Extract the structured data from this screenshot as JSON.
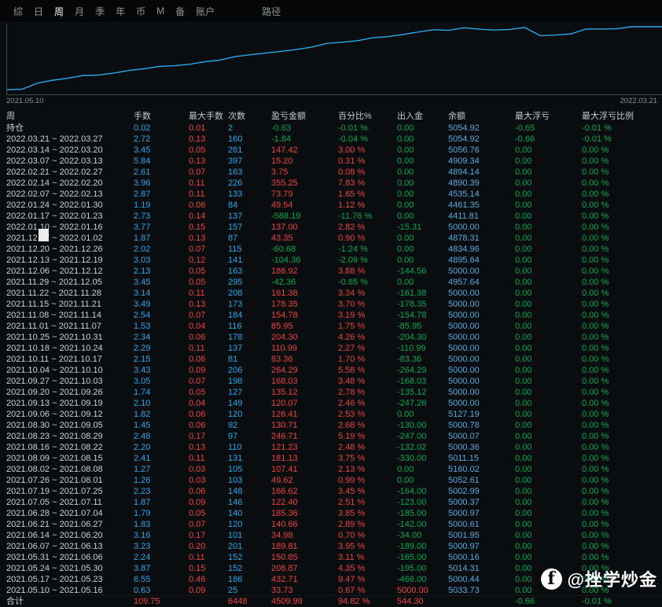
{
  "menu": {
    "items": [
      "综",
      "日",
      "周",
      "月",
      "季",
      "年",
      "币",
      "M",
      "备",
      "账户"
    ],
    "active_index": 2,
    "path_item": "路径"
  },
  "chart": {
    "x_start_label": "2021.05.10",
    "x_end_label": "2022.03.21"
  },
  "chart_data": {
    "type": "line",
    "title": "",
    "x_range": [
      "2021.05.10",
      "2022.03.21"
    ],
    "ylim": [
      0,
      4600
    ],
    "grid": false,
    "line_color": "#2aa7e8",
    "series": [
      {
        "name": "equity",
        "values": [
          0,
          33.73,
          466.44,
          675.31,
          826.16,
          1015.97,
          1050.95,
          1191.61,
          1376.97,
          1499.37,
          1665.99,
          1715.61,
          1823.02,
          2004.15,
          2125.38,
          2372.09,
          2502.8,
          2629.21,
          2749.28,
          2884.4,
          3052.43,
          3316.72,
          3400.08,
          3511.07,
          3715.37,
          3801.32,
          3956.1,
          4134.45,
          4295.83,
          4253.47,
          4440.39,
          4336.03,
          4275.35,
          4318.7,
          4455.7,
          3867.51,
          3917.05,
          3990.84,
          4346.09,
          4349.84,
          4365.04,
          4512.46,
          4510.62,
          4509.99
        ]
      }
    ]
  },
  "table": {
    "columns": [
      "周",
      "手数",
      "最大手数",
      "次数",
      "盈亏金额",
      "百分比%",
      "出入金",
      "余额",
      "最大浮亏",
      "最大浮亏比例"
    ],
    "rows": [
      [
        "持仓",
        "0.02",
        "0.01",
        "2",
        "-0.63",
        "-0.01 %",
        "0.00",
        "5054.92",
        "-0.65",
        "-0.01 %"
      ],
      [
        "2022.03.21 ~ 2022.03.27",
        "2.72",
        "0.13",
        "160",
        "-1.84",
        "-0.04 %",
        "0.00",
        "5054.92",
        "-0.66",
        "-0.01 %"
      ],
      [
        "2022.03.14 ~ 2022.03.20",
        "3.45",
        "0.05",
        "261",
        "147.42",
        "3.00 %",
        "0.00",
        "5056.76",
        "0.00",
        "0.00 %"
      ],
      [
        "2022.03.07 ~ 2022.03.13",
        "5.84",
        "0.13",
        "397",
        "15.20",
        "0.31 %",
        "0.00",
        "4909.34",
        "0.00",
        "0.00 %"
      ],
      [
        "2022.02.21 ~ 2022.02.27",
        "2.61",
        "0.07",
        "163",
        "3.75",
        "0.08 %",
        "0.00",
        "4894.14",
        "0.00",
        "0.00 %"
      ],
      [
        "2022.02.14 ~ 2022.02.20",
        "3.96",
        "0.11",
        "226",
        "355.25",
        "7.83 %",
        "0.00",
        "4890.39",
        "0.00",
        "0.00 %"
      ],
      [
        "2022.02.07 ~ 2022.02.13",
        "2.87",
        "0.11",
        "133",
        "73.79",
        "1.65 %",
        "0.00",
        "4535.14",
        "0.00",
        "0.00 %"
      ],
      [
        "2022.01.24 ~ 2022.01.30",
        "1.19",
        "0.06",
        "84",
        "49.54",
        "1.12 %",
        "0.00",
        "4461.35",
        "0.00",
        "0.00 %"
      ],
      [
        "2022.01.17 ~ 2022.01.23",
        "2.73",
        "0.14",
        "137",
        "-588.19",
        "-11.76 %",
        "0.00",
        "4411.81",
        "0.00",
        "0.00 %"
      ],
      [
        "2022.01.10 ~ 2022.01.16",
        "3.77",
        "0.15",
        "157",
        "137.00",
        "2.82 %",
        "-15.31",
        "5000.00",
        "0.00",
        "0.00 %"
      ],
      [
        "2021.12.27 ~ 2022.01.02",
        "1.87",
        "0.13",
        "87",
        "43.35",
        "0.90 %",
        "0.00",
        "4878.31",
        "0.00",
        "0.00 %"
      ],
      [
        "2021.12.20 ~ 2021.12.26",
        "2.02",
        "0.07",
        "115",
        "-60.68",
        "-1.24 %",
        "0.00",
        "4834.96",
        "0.00",
        "0.00 %"
      ],
      [
        "2021.12.13 ~ 2021.12.19",
        "3.03",
        "0.12",
        "141",
        "-104.36",
        "-2.09 %",
        "0.00",
        "4895.64",
        "0.00",
        "0.00 %"
      ],
      [
        "2021.12.06 ~ 2021.12.12",
        "2.13",
        "0.05",
        "163",
        "186.92",
        "3.88 %",
        "-144.56",
        "5000.00",
        "0.00",
        "0.00 %"
      ],
      [
        "2021.11.29 ~ 2021.12.05",
        "3.45",
        "0.05",
        "295",
        "-42.36",
        "-0.85 %",
        "0.00",
        "4957.64",
        "0.00",
        "0.00 %"
      ],
      [
        "2021.11.22 ~ 2021.11.28",
        "3.14",
        "0.11",
        "208",
        "161.38",
        "3.34 %",
        "-161.38",
        "5000.00",
        "0.00",
        "0.00 %"
      ],
      [
        "2021.11.15 ~ 2021.11.21",
        "3.49",
        "0.13",
        "173",
        "178.35",
        "3.70 %",
        "-178.35",
        "5000.00",
        "0.00",
        "0.00 %"
      ],
      [
        "2021.11.08 ~ 2021.11.14",
        "2.54",
        "0.07",
        "184",
        "154.78",
        "3.19 %",
        "-154.78",
        "5000.00",
        "0.00",
        "0.00 %"
      ],
      [
        "2021.11.01 ~ 2021.11.07",
        "1.53",
        "0.04",
        "116",
        "85.95",
        "1.75 %",
        "-85.95",
        "5000.00",
        "0.00",
        "0.00 %"
      ],
      [
        "2021.10.25 ~ 2021.10.31",
        "2.34",
        "0.06",
        "178",
        "204.30",
        "4.26 %",
        "-204.30",
        "5000.00",
        "0.00",
        "0.00 %"
      ],
      [
        "2021.10.18 ~ 2021.10.24",
        "2.29",
        "0.11",
        "137",
        "110.99",
        "2.27 %",
        "-110.99",
        "5000.00",
        "0.00",
        "0.00 %"
      ],
      [
        "2021.10.11 ~ 2021.10.17",
        "2.15",
        "0.06",
        "81",
        "83.36",
        "1.70 %",
        "-83.36",
        "5000.00",
        "0.00",
        "0.00 %"
      ],
      [
        "2021.10.04 ~ 2021.10.10",
        "3.43",
        "0.09",
        "206",
        "264.29",
        "5.58 %",
        "-264.29",
        "5000.00",
        "0.00",
        "0.00 %"
      ],
      [
        "2021.09.27 ~ 2021.10.03",
        "3.05",
        "0.07",
        "198",
        "168.03",
        "3.48 %",
        "-168.03",
        "5000.00",
        "0.00",
        "0.00 %"
      ],
      [
        "2021.09.20 ~ 2021.09.26",
        "1.74",
        "0.05",
        "127",
        "135.12",
        "2.78 %",
        "-135.12",
        "5000.00",
        "0.00",
        "0.00 %"
      ],
      [
        "2021.09.13 ~ 2021.09.19",
        "2.10",
        "0.04",
        "149",
        "120.07",
        "2.46 %",
        "-247.26",
        "5000.00",
        "0.00",
        "0.00 %"
      ],
      [
        "2021.09.06 ~ 2021.09.12",
        "1.82",
        "0.06",
        "120",
        "126.41",
        "2.53 %",
        "0.00",
        "5127.19",
        "0.00",
        "0.00 %"
      ],
      [
        "2021.08.30 ~ 2021.09.05",
        "1.45",
        "0.06",
        "92",
        "130.71",
        "2.68 %",
        "-130.00",
        "5000.78",
        "0.00",
        "0.00 %"
      ],
      [
        "2021.08.23 ~ 2021.08.29",
        "2.48",
        "0.17",
        "97",
        "246.71",
        "5.19 %",
        "-247.00",
        "5000.07",
        "0.00",
        "0.00 %"
      ],
      [
        "2021.08.16 ~ 2021.08.22",
        "2.20",
        "0.13",
        "110",
        "121.23",
        "2.48 %",
        "-132.02",
        "5000.36",
        "0.00",
        "0.00 %"
      ],
      [
        "2021.08.09 ~ 2021.08.15",
        "2.41",
        "0.11",
        "131",
        "181.13",
        "3.75 %",
        "-330.00",
        "5011.15",
        "0.00",
        "0.00 %"
      ],
      [
        "2021.08.02 ~ 2021.08.08",
        "1.27",
        "0.03",
        "105",
        "107.41",
        "2.13 %",
        "0.00",
        "5160.02",
        "0.00",
        "0.00 %"
      ],
      [
        "2021.07.26 ~ 2021.08.01",
        "1.26",
        "0.03",
        "103",
        "49.62",
        "0.99 %",
        "0.00",
        "5052.61",
        "0.00",
        "0.00 %"
      ],
      [
        "2021.07.19 ~ 2021.07.25",
        "2.23",
        "0.06",
        "148",
        "166.62",
        "3.45 %",
        "-164.00",
        "5002.99",
        "0.00",
        "0.00 %"
      ],
      [
        "2021.07.05 ~ 2021.07.11",
        "1.87",
        "0.09",
        "146",
        "122.40",
        "2.51 %",
        "-123.00",
        "5000.37",
        "0.00",
        "0.00 %"
      ],
      [
        "2021.06.28 ~ 2021.07.04",
        "1.79",
        "0.05",
        "140",
        "185.36",
        "3.85 %",
        "-185.00",
        "5000.97",
        "0.00",
        "0.00 %"
      ],
      [
        "2021.06.21 ~ 2021.06.27",
        "1.83",
        "0.07",
        "120",
        "140.66",
        "2.89 %",
        "-142.00",
        "5000.61",
        "0.00",
        "0.00 %"
      ],
      [
        "2021.06.14 ~ 2021.06.20",
        "3.16",
        "0.17",
        "101",
        "34.98",
        "0.70 %",
        "-34.00",
        "5001.95",
        "0.00",
        "0.00 %"
      ],
      [
        "2021.06.07 ~ 2021.06.13",
        "3.23",
        "0.20",
        "201",
        "189.81",
        "3.95 %",
        "-189.00",
        "5000.97",
        "0.00",
        "0.00 %"
      ],
      [
        "2021.05.31 ~ 2021.06.06",
        "2.24",
        "0.11",
        "152",
        "150.85",
        "3.11 %",
        "-165.00",
        "5000.16",
        "0.00",
        "0.00 %"
      ],
      [
        "2021.05.24 ~ 2021.05.30",
        "3.87",
        "0.15",
        "152",
        "208.87",
        "4.35 %",
        "-195.00",
        "5014.31",
        "0.00",
        "0.00 %"
      ],
      [
        "2021.05.17 ~ 2021.05.23",
        "6.55",
        "0.46",
        "186",
        "432.71",
        "9.47 %",
        "-466.00",
        "5000.44",
        "0.00",
        "0.00 %"
      ],
      [
        "2021.05.10 ~ 2021.05.16",
        "0.63",
        "0.09",
        "25",
        "33.73",
        "0.67 %",
        "5000.00",
        "5033.73",
        "0.00",
        "0.00 %"
      ]
    ],
    "footer": [
      "合计",
      "109.75",
      "",
      "6448",
      "4509.99",
      "94.82 %",
      "544.30",
      "",
      "-0.66",
      "-0.01 %"
    ]
  },
  "watermark": {
    "logo_letter": "f",
    "handle": "@挫学炒金"
  },
  "colors": {
    "accent_cyan": "#2aa7e8",
    "positive_red": "#e8463c",
    "negative_green": "#07a84f",
    "balance_blue": "#55aae0",
    "line_color": "#2aa7e8"
  }
}
